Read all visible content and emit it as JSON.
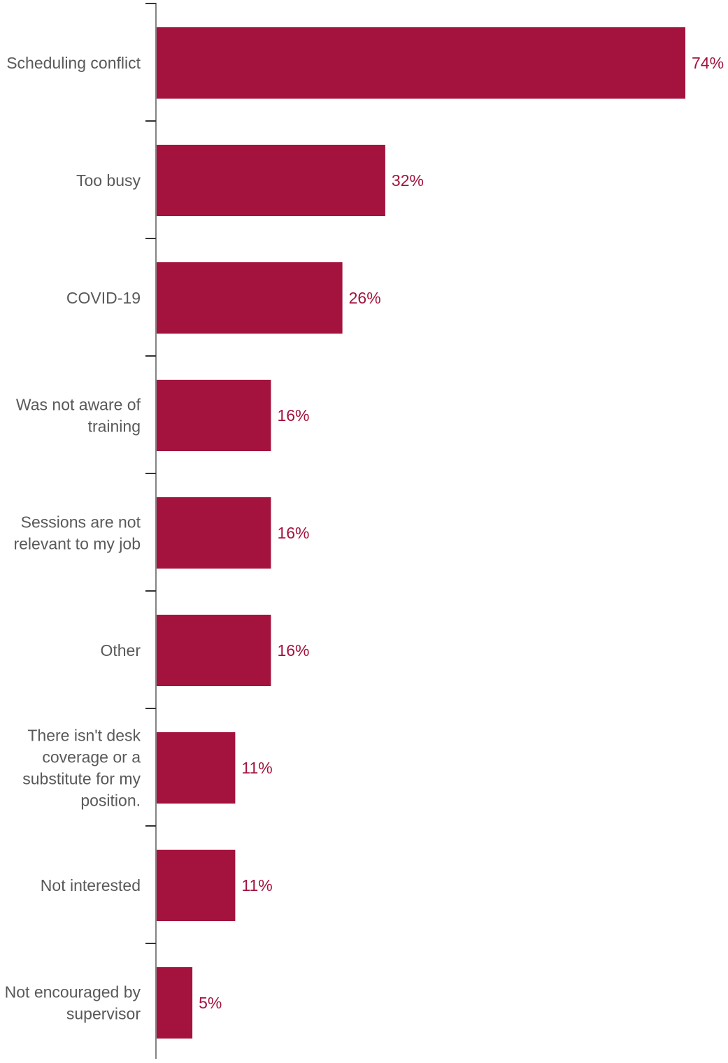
{
  "chart_data": {
    "type": "bar",
    "orientation": "horizontal",
    "categories": [
      [
        "Scheduling conflict"
      ],
      [
        "Too busy"
      ],
      [
        "COVID-19"
      ],
      [
        "Was not aware of",
        "training"
      ],
      [
        "Sessions are not",
        "relevant to my job"
      ],
      [
        "Other"
      ],
      [
        "There isn't desk",
        "coverage or a",
        "substitute for my",
        "position."
      ],
      [
        "Not interested"
      ],
      [
        "Not encouraged by",
        "supervisor"
      ]
    ],
    "values": [
      74,
      32,
      26,
      16,
      16,
      16,
      11,
      11,
      5
    ],
    "value_labels": [
      "74%",
      "32%",
      "26%",
      "16%",
      "16%",
      "16%",
      "11%",
      "11%",
      "5%"
    ],
    "unit": "%",
    "xlim": [
      0,
      74
    ],
    "grid": false,
    "legend": "none",
    "title": "",
    "xlabel": "",
    "ylabel": ""
  },
  "colors": {
    "bar": "#a3133d",
    "value_label": "#a3133d",
    "category_label": "#595959",
    "axis": "#333333"
  }
}
